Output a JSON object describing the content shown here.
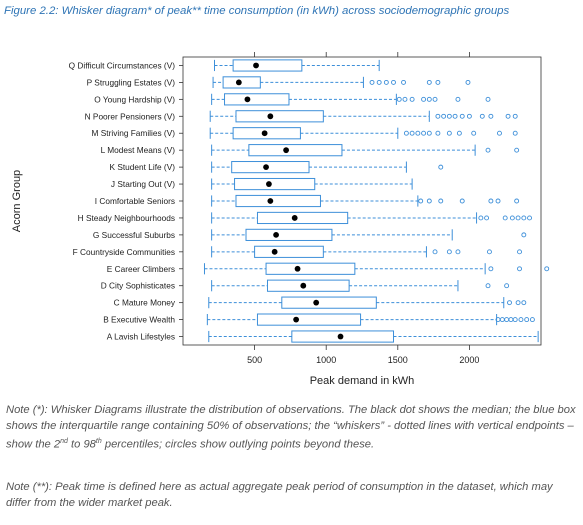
{
  "caption": "Figure 2.2: Whisker diagram* of peak** time consumption (in kWh) across sociodemographic groups",
  "chart_data": {
    "type": "boxplot",
    "orientation": "horizontal",
    "ylabel": "Acorn Group",
    "xlabel": "Peak demand in kWh",
    "xlim": [
      0,
      2500
    ],
    "xticks": [
      500,
      1000,
      1500,
      2000
    ],
    "colors": {
      "box": "#3d8fd9",
      "median": "#000000",
      "axis": "#333333"
    },
    "categories": [
      "Q Difficult Circumstances (V)",
      "P Struggling Estates (V)",
      "O Young Hardship (V)",
      "N Poorer Pensioners (V)",
      "M Striving Families (V)",
      "L Modest Means (V)",
      "K Student Life (V)",
      "J Starting Out (V)",
      "I Comfortable Seniors",
      "H Steady Neighbourhoods",
      "G Successful Suburbs",
      "F Countryside Communities",
      "E Career Climbers",
      "D City Sophisticates",
      "C Mature Money",
      "B Executive Wealth",
      "A Lavish Lifestyles"
    ],
    "boxes": [
      {
        "whisker_low": 220,
        "q1": 350,
        "median": 510,
        "q3": 830,
        "whisker_high": 1370,
        "outliers": []
      },
      {
        "whisker_low": 210,
        "q1": 280,
        "median": 390,
        "q3": 540,
        "whisker_high": 1260,
        "outliers": [
          1320,
          1370,
          1420,
          1470,
          1540,
          1720,
          1780,
          1990
        ]
      },
      {
        "whisker_low": 200,
        "q1": 290,
        "median": 450,
        "q3": 740,
        "whisker_high": 1490,
        "outliers": [
          1510,
          1550,
          1600,
          1680,
          1720,
          1760,
          1920,
          2130
        ]
      },
      {
        "whisker_low": 190,
        "q1": 370,
        "median": 610,
        "q3": 980,
        "whisker_high": 1720,
        "outliers": [
          1780,
          1820,
          1860,
          1900,
          1950,
          2000,
          2090,
          2150,
          2270,
          2320
        ]
      },
      {
        "whisker_low": 190,
        "q1": 350,
        "median": 570,
        "q3": 820,
        "whisker_high": 1500,
        "outliers": [
          1560,
          1600,
          1640,
          1680,
          1720,
          1780,
          1860,
          1930,
          2030,
          2210,
          2320
        ]
      },
      {
        "whisker_low": 200,
        "q1": 460,
        "median": 720,
        "q3": 1110,
        "whisker_high": 2040,
        "outliers": [
          2130,
          2330
        ]
      },
      {
        "whisker_low": 200,
        "q1": 340,
        "median": 580,
        "q3": 880,
        "whisker_high": 1560,
        "outliers": [
          1800
        ]
      },
      {
        "whisker_low": 200,
        "q1": 360,
        "median": 600,
        "q3": 920,
        "whisker_high": 1600,
        "outliers": []
      },
      {
        "whisker_low": 200,
        "q1": 370,
        "median": 610,
        "q3": 960,
        "whisker_high": 1640,
        "outliers": [
          1660,
          1720,
          1800,
          1950,
          2150,
          2200,
          2330
        ]
      },
      {
        "whisker_low": 200,
        "q1": 520,
        "median": 780,
        "q3": 1150,
        "whisker_high": 2050,
        "outliers": [
          2080,
          2120,
          2250,
          2300,
          2340,
          2380,
          2420
        ]
      },
      {
        "whisker_low": 200,
        "q1": 440,
        "median": 650,
        "q3": 1040,
        "whisker_high": 1880,
        "outliers": [
          2380
        ]
      },
      {
        "whisker_low": 200,
        "q1": 500,
        "median": 640,
        "q3": 980,
        "whisker_high": 1700,
        "outliers": [
          1760,
          1860,
          1920,
          2140,
          2350
        ]
      },
      {
        "whisker_low": 150,
        "q1": 580,
        "median": 800,
        "q3": 1200,
        "whisker_high": 2110,
        "outliers": [
          2150,
          2350,
          2540
        ]
      },
      {
        "whisker_low": 200,
        "q1": 590,
        "median": 840,
        "q3": 1160,
        "whisker_high": 1920,
        "outliers": [
          2130,
          2260
        ]
      },
      {
        "whisker_low": 180,
        "q1": 690,
        "median": 930,
        "q3": 1350,
        "whisker_high": 2240,
        "outliers": [
          2280,
          2340,
          2380
        ]
      },
      {
        "whisker_low": 170,
        "q1": 520,
        "median": 790,
        "q3": 1240,
        "whisker_high": 2190,
        "outliers": [
          2200,
          2230,
          2260,
          2290,
          2320,
          2360,
          2400,
          2440
        ]
      },
      {
        "whisker_low": 180,
        "q1": 760,
        "median": 1100,
        "q3": 1470,
        "whisker_high": 2480,
        "outliers": []
      }
    ]
  },
  "notes": {
    "note1_a": "Note (*): Whisker Diagrams illustrate the distribution of observations. The black dot shows the median; the blue box shows the interquartile range containing 50% of observations; the “whiskers” - dotted lines with vertical endpoints – show the 2",
    "note1_sup1": "nd",
    "note1_b": " to 98",
    "note1_sup2": "th",
    "note1_c": " percentiles; circles show outlying points beyond these.",
    "note2": "Note (**): Peak time is defined here as actual aggregate peak period of consumption in the dataset, which may differ from the wider market peak."
  }
}
